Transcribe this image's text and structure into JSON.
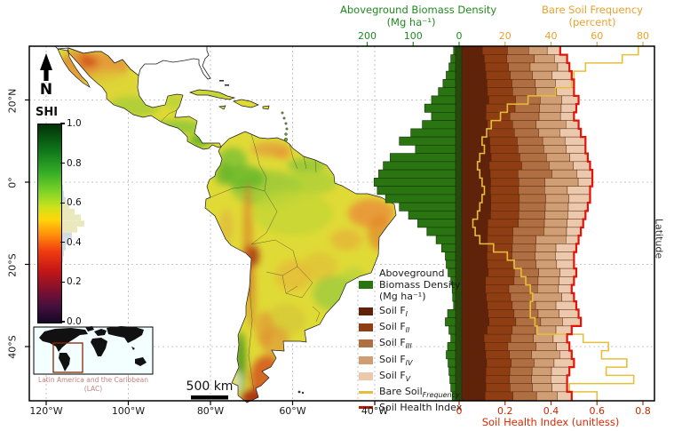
{
  "figure": {
    "top_axis_green": {
      "title": "Aboveground Biomass Density",
      "units": "(Mg ha⁻¹)",
      "tick_values": [
        200,
        100,
        0
      ],
      "color": "#1f8a1f"
    },
    "top_axis_orange": {
      "title": "Bare Soil Frequency",
      "units": "(percent)",
      "tick_values": [
        20,
        40,
        60,
        80
      ],
      "color": "#e8a22c"
    },
    "bottom_axis_red": {
      "title": "Soil Health Index (unitless)",
      "tick_values": [
        0,
        0.2,
        0.4,
        0.6,
        0.8
      ],
      "color": "#e02800",
      "tick_color": "#bf2a00"
    },
    "map_axes": {
      "lon_ticks": [
        {
          "label": "120°W",
          "lon": 120
        },
        {
          "label": "100°W",
          "lon": 100
        },
        {
          "label": "80°W",
          "lon": 80
        },
        {
          "label": "60°W",
          "lon": 60
        },
        {
          "label": "40°W",
          "lon": 40
        }
      ],
      "lat_ticks": [
        {
          "label": "20°N",
          "lat": 20
        },
        {
          "label": "0°",
          "lat": 0
        },
        {
          "label": "20°S",
          "lat": -20
        },
        {
          "label": "40°S",
          "lat": -40
        }
      ]
    },
    "right_axis_label": "Latitude",
    "north_label": "N",
    "scalebar_label": "500 km",
    "colorbar": {
      "title": "SHI",
      "tick_values": [
        1.0,
        0.8,
        0.6,
        0.4,
        0.2,
        0.0
      ],
      "gradient_stops": [
        [
          0.0,
          "#160724"
        ],
        [
          0.08,
          "#43103e"
        ],
        [
          0.16,
          "#7c1030"
        ],
        [
          0.26,
          "#c41616"
        ],
        [
          0.36,
          "#f03c10"
        ],
        [
          0.44,
          "#ff8c0a"
        ],
        [
          0.52,
          "#ffd60a"
        ],
        [
          0.58,
          "#cfe21a"
        ],
        [
          0.66,
          "#7fd428"
        ],
        [
          0.76,
          "#33ac25"
        ],
        [
          0.86,
          "#117a1c"
        ],
        [
          0.94,
          "#07520f"
        ],
        [
          1.0,
          "#03300a"
        ]
      ]
    },
    "inset": {
      "caption_line1": "Latin America and the Caribbean",
      "caption_line2": "(LAC)",
      "caption_color": "#c98080",
      "box_color": "#8b2500"
    }
  },
  "legend": {
    "items": [
      {
        "swatch": "patch",
        "color": "#2a7412",
        "lines": [
          "Aboveground",
          " Biomass Density",
          "(Mg ha⁻¹)"
        ]
      },
      {
        "swatch": "patch",
        "color": "#61220a",
        "text": "Soil F",
        "sub": "I"
      },
      {
        "swatch": "patch",
        "color": "#8f3d12",
        "text": "Soil F",
        "sub": "II"
      },
      {
        "swatch": "patch",
        "color": "#b06f42",
        "text": "Soil F",
        "sub": "III"
      },
      {
        "swatch": "patch",
        "color": "#d09e74",
        "text": "Soil F",
        "sub": "IV"
      },
      {
        "swatch": "patch",
        "color": "#ecc9ac",
        "text": "Soil F",
        "sub": "V"
      },
      {
        "swatch": "line",
        "color": "#e6bf3a",
        "text": "Bare Soil",
        "sub": "Frequency"
      },
      {
        "swatch": "line",
        "color": "#b81c00",
        "text": "Soil Health Index",
        "sub": ""
      }
    ]
  },
  "chart_data": {
    "type": "area",
    "description": "Latitudinal profiles in 2-degree bins drawn beside an SHI map of Latin America: green horizontal bars = aboveground biomass density (top green axis, reversed, Mg/ha); stacked brown areas = soil fractions F_I..F_V expressed as cumulative share of the Soil Health Index; yellow step line = bare soil frequency (top orange axis, percent); red step line = soil health index (bottom red axis, unitless).",
    "latitude_bins_deg": [
      32,
      30,
      28,
      26,
      24,
      22,
      20,
      18,
      16,
      14,
      12,
      10,
      8,
      6,
      4,
      2,
      0,
      -2,
      -4,
      -6,
      -8,
      -10,
      -12,
      -14,
      -16,
      -18,
      -20,
      -22,
      -24,
      -26,
      -28,
      -30,
      -32,
      -34,
      -36,
      -38,
      -40,
      -42,
      -44,
      -46,
      -48,
      -50,
      -52
    ],
    "series": {
      "aboveground_biomass_Mg_ha": [
        12,
        18,
        22,
        28,
        35,
        45,
        60,
        75,
        60,
        80,
        105,
        130,
        95,
        150,
        165,
        175,
        185,
        178,
        160,
        130,
        110,
        90,
        70,
        50,
        38,
        30,
        28,
        24,
        18,
        15,
        14,
        12,
        25,
        30,
        22,
        18,
        25,
        28,
        24,
        22,
        20,
        18,
        15
      ],
      "soil_health_index": [
        0.44,
        0.47,
        0.48,
        0.49,
        0.5,
        0.5,
        0.52,
        0.51,
        0.5,
        0.52,
        0.53,
        0.55,
        0.55,
        0.56,
        0.57,
        0.58,
        0.58,
        0.57,
        0.57,
        0.56,
        0.55,
        0.54,
        0.53,
        0.52,
        0.51,
        0.5,
        0.5,
        0.51,
        0.5,
        0.49,
        0.5,
        0.51,
        0.52,
        0.53,
        0.49,
        0.47,
        0.48,
        0.49,
        0.5,
        0.48,
        0.47,
        0.47,
        0.49
      ],
      "bare_soil_frequency_pct": [
        78,
        71,
        55,
        50,
        49,
        42,
        30,
        21,
        18,
        14,
        12,
        10,
        11,
        9,
        8,
        9,
        10,
        11,
        10,
        9,
        8,
        6,
        7,
        9,
        15,
        21,
        24,
        27,
        29,
        31,
        32,
        31,
        31,
        33,
        34,
        54,
        65,
        62,
        73,
        64,
        76,
        48,
        60
      ]
    },
    "soil_layers": {
      "names": [
        "Soil F_I",
        "Soil F_II",
        "Soil F_III",
        "Soil F_IV",
        "Soil F_V"
      ],
      "cumulative_fraction_of_SHI": [
        0.24,
        0.46,
        0.67,
        0.86,
        1.0
      ],
      "colors": [
        "#61220a",
        "#8f3d12",
        "#b06f42",
        "#d09e74",
        "#ecc9ac"
      ]
    },
    "line_colors": {
      "bare_soil": "#e6bf3a",
      "soil_health_index": "#e01408"
    },
    "bar_colors": {
      "biomass_fill": "#2a7412",
      "biomass_edge": "#173f08",
      "baseline_strip": "#27480f"
    },
    "axes": {
      "biomass_top_ticks": [
        200,
        100,
        0
      ],
      "bare_pct_top_ticks": [
        20,
        40,
        60,
        80
      ],
      "shi_bottom_ticks": [
        0,
        0.2,
        0.4,
        0.6,
        0.8
      ],
      "latitude_tick_labels": [
        "20°N",
        "0°",
        "20°S",
        "40°S"
      ]
    },
    "colorbar": {
      "label": "SHI",
      "range": [
        0,
        1
      ]
    },
    "shi_distribution_hist": {
      "bin_start": 0.3,
      "bin_step": 0.03,
      "counts": [
        2,
        3,
        5,
        8,
        12,
        18,
        26,
        22,
        15,
        9,
        5,
        3,
        2,
        1
      ]
    }
  }
}
